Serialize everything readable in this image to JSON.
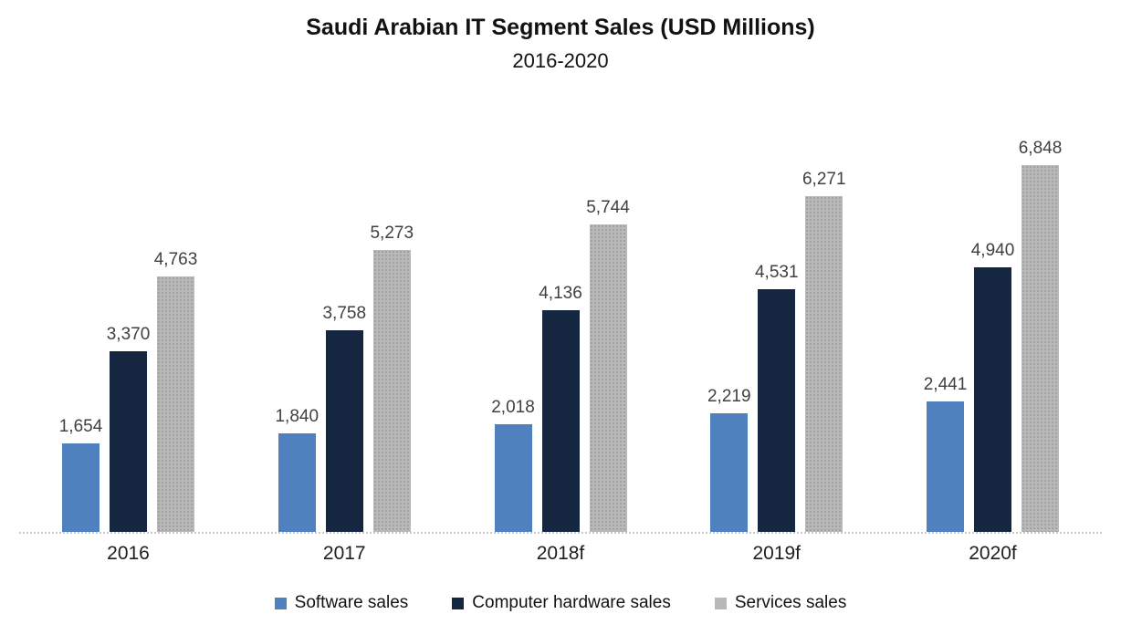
{
  "title": "Saudi Arabian IT Segment Sales (USD Millions)",
  "subtitle": "2016-2020",
  "chart_data": {
    "type": "bar",
    "title": "Saudi Arabian IT Segment Sales (USD Millions)",
    "subtitle": "2016-2020",
    "categories": [
      "2016",
      "2017",
      "2018f",
      "2019f",
      "2020f"
    ],
    "series": [
      {
        "name": "Software sales",
        "color": "#4E81BD",
        "values": [
          1654,
          1840,
          2018,
          2219,
          2441
        ]
      },
      {
        "name": "Computer hardware sales",
        "color": "#152740",
        "values": [
          3370,
          3758,
          4136,
          4531,
          4940
        ]
      },
      {
        "name": "Services sales",
        "color": "#B8B8B8",
        "values": [
          4763,
          5273,
          5744,
          6271,
          6848
        ]
      }
    ],
    "ylim": [
      0,
      6848
    ],
    "grid": false,
    "legend_position": "bottom",
    "data_labels": true,
    "data_label_color": "#404040",
    "axis_line_color": "#C8C8C8"
  }
}
